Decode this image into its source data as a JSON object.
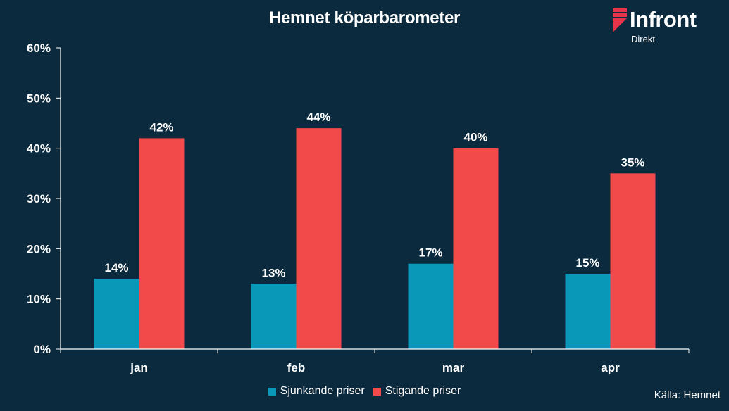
{
  "header": {
    "title": "Hemnet köparbarometer",
    "logo_text": "Infront",
    "logo_subtext": "Direkt"
  },
  "source_label": "Källa:  Hemnet",
  "colors": {
    "background": "#0c2a3e",
    "sjunkande": "#0a98b8",
    "stigande": "#f24a4a",
    "axis": "#ffffff",
    "logo_mark": "#e8344a"
  },
  "chart_data": {
    "type": "bar",
    "title": "Hemnet köparbarometer",
    "categories": [
      "jan",
      "feb",
      "mar",
      "apr"
    ],
    "series": [
      {
        "name": "Sjunkande priser",
        "values": [
          14,
          13,
          17,
          15
        ],
        "labels": [
          "14%",
          "13%",
          "17%",
          "15%"
        ]
      },
      {
        "name": "Stigande priser",
        "values": [
          42,
          44,
          40,
          35
        ],
        "labels": [
          "42%",
          "44%",
          "40%",
          "35%"
        ]
      }
    ],
    "yticks": [
      0,
      10,
      20,
      30,
      40,
      50,
      60
    ],
    "ytick_labels": [
      "0%",
      "10%",
      "20%",
      "30%",
      "40%",
      "50%",
      "60%"
    ],
    "ylim": [
      0,
      60
    ],
    "grid": false,
    "legend_position": "bottom"
  }
}
